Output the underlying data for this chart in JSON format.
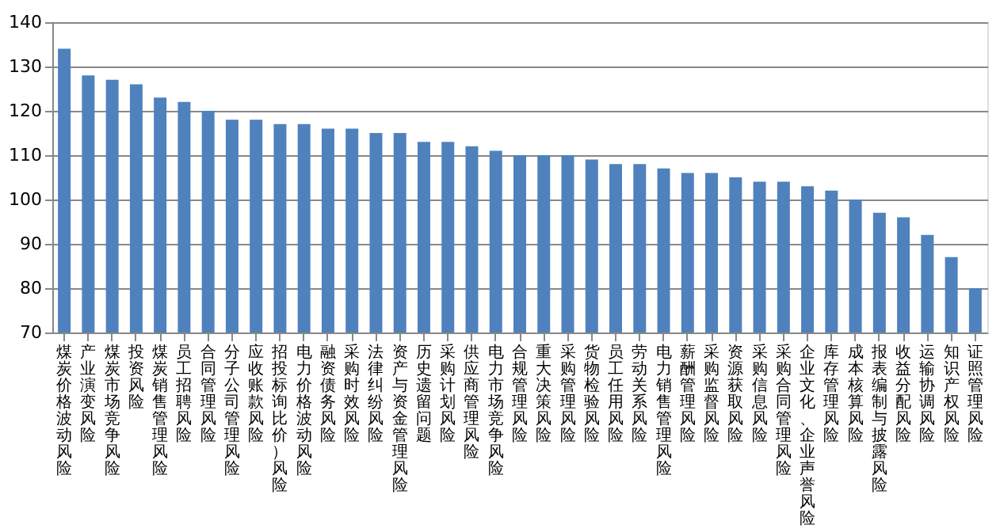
{
  "chart_data": {
    "type": "bar",
    "categories": [
      "煤炭价格波动风险",
      "产业演变风险",
      "煤炭市场竞争风险",
      "投资风险",
      "煤炭销售管理风险",
      "员工招聘风险",
      "合同管理风险",
      "分子公司管理风险",
      "应收账款风险",
      "招投标询比价）风险",
      "电力价格波动风险",
      "融资债务风险",
      "采购时效风险",
      "法律纠纷风险",
      "资产与资金管理风险",
      "历史遗留问题",
      "采购计划风险",
      "供应商管理风险",
      "电力市场竞争风险",
      "合规管理风险",
      "重大决策风险",
      "采购管理风险",
      "货物检验风险",
      "员工任用风险",
      "劳动关系风险",
      "电力销售管理风险",
      "薪酬管理风险",
      "采购监督风险",
      "资源获取风险",
      "采购信息风险",
      "采购合同管理风险",
      "企业文化、企业声誉风险",
      "库存管理风险",
      "成本核算风险",
      "报表编制与披露风险",
      "收益分配风险",
      "运输协调风险",
      "知识产权风险",
      "证照管理风险"
    ],
    "values": [
      134,
      128,
      127,
      126,
      123,
      122,
      120,
      118,
      118,
      117,
      117,
      116,
      116,
      115,
      115,
      113,
      113,
      112,
      111,
      110,
      110,
      110,
      109,
      108,
      108,
      107,
      106,
      106,
      105,
      104,
      104,
      103,
      102,
      100,
      97,
      96,
      92,
      87,
      80
    ],
    "color": "#4f81bd",
    "ylim": [
      70,
      140
    ],
    "yticks": [
      70,
      80,
      90,
      100,
      110,
      120,
      130,
      140
    ],
    "grid": "y"
  }
}
